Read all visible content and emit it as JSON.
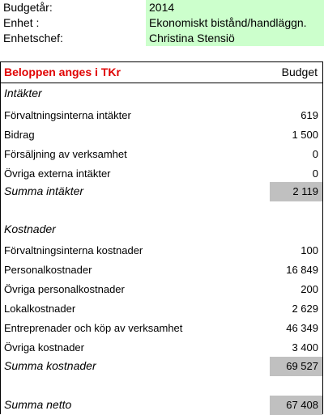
{
  "meta": [
    {
      "label": "Budgetår:",
      "value": "2014"
    },
    {
      "label": "Enhet :",
      "value": "Ekonomiskt bistånd/handläggn."
    },
    {
      "label": "Enhetschef:",
      "value": "Christina Stensiö"
    }
  ],
  "header": {
    "title": "Beloppen anges i TKr",
    "column": "Budget"
  },
  "income_section": "Intäkter",
  "income": [
    {
      "name": "Förvaltningsinterna intäkter",
      "value": "619"
    },
    {
      "name": "Bidrag",
      "value": "1 500"
    },
    {
      "name": "Försäljning av verksamhet",
      "value": "0"
    },
    {
      "name": "Övriga externa intäkter",
      "value": "0"
    }
  ],
  "income_total": {
    "name": "Summa  intäkter",
    "value": "2 119"
  },
  "cost_section": "Kostnader",
  "costs": [
    {
      "name": "Förvaltningsinterna kostnader",
      "value": "100"
    },
    {
      "name": "Personalkostnader",
      "value": "16 849"
    },
    {
      "name": "Övriga personalkostnader",
      "value": "200"
    },
    {
      "name": "Lokalkostnader",
      "value": "2 629"
    },
    {
      "name": "Entreprenader och köp av verksamhet",
      "value": "46 349"
    },
    {
      "name": "Övriga kostnader",
      "value": "3 400"
    }
  ],
  "cost_total": {
    "name": "Summa kostnader",
    "value": "69 527"
  },
  "net_total": {
    "name": "Summa netto",
    "value": "67 408"
  }
}
